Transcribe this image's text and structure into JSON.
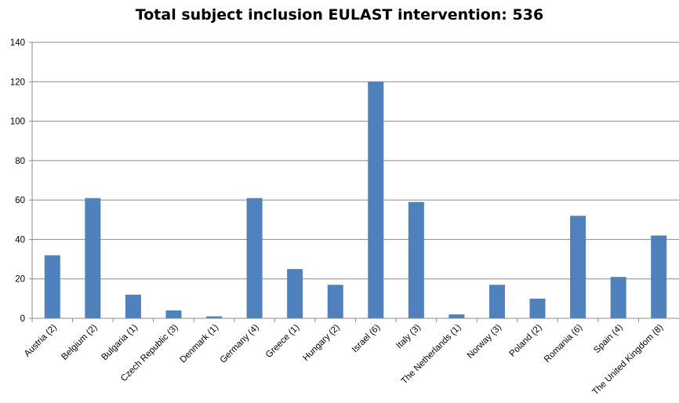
{
  "chart_data": {
    "type": "bar",
    "title": "Total subject inclusion EULAST intervention: 536",
    "xlabel": "",
    "ylabel": "",
    "ylim": [
      0,
      140
    ],
    "yticks": [
      0,
      20,
      40,
      60,
      80,
      100,
      120,
      140
    ],
    "grid": true,
    "legend": "none",
    "bar_color": "#4F81BD",
    "categories": [
      "Austria (2)",
      "Belgium (2)",
      "Bulgaria (1)",
      "Czech Republic (3)",
      "Denmark (1)",
      "Germany (4)",
      "Greece (1)",
      "Hungary (2)",
      "Israel (6)",
      "Italy (3)",
      "The Netherlands (1)",
      "Norway (3)",
      "Poland (2)",
      "Romania (6)",
      "Spain (4)",
      "The United Kingdom (8)"
    ],
    "values": [
      32,
      61,
      12,
      4,
      1,
      61,
      25,
      17,
      120,
      59,
      2,
      17,
      10,
      52,
      21,
      42
    ]
  }
}
